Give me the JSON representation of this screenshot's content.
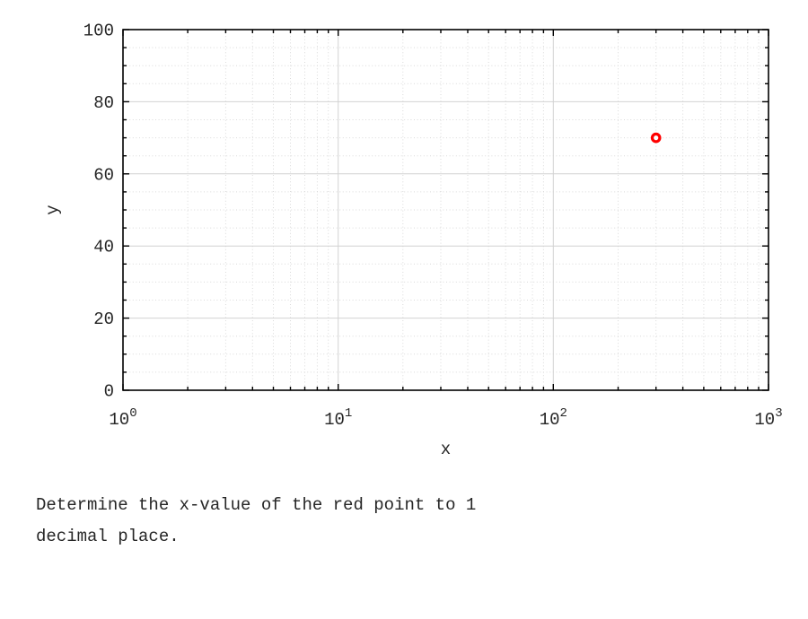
{
  "chart_data": {
    "type": "scatter",
    "title": "",
    "xlabel": "x",
    "ylabel": "y",
    "x_scale": "log",
    "xlim": [
      1,
      1000
    ],
    "ylim": [
      0,
      100
    ],
    "x_tick_base": "10",
    "x_tick_exponents": [
      0,
      1,
      2,
      3
    ],
    "y_ticks": [
      0,
      20,
      40,
      60,
      80,
      100
    ],
    "y_minor_step": 5,
    "grid": "on",
    "minor_grid": "on",
    "legend": "none",
    "series": [
      {
        "name": "red point",
        "marker": "open-circle",
        "color": "#ff0000",
        "points": [
          {
            "x": 300,
            "y": 70
          }
        ]
      }
    ]
  },
  "question": {
    "text": "Determine the x-value of the red point to 1 decimal place."
  },
  "colors": {
    "background": "#ffffff",
    "axis": "#000000",
    "major_grid": "#d2d2d2",
    "minor_grid": "#dadada",
    "tick_label": "#262626",
    "marker": "#ff0000",
    "question_text": "#262626"
  }
}
